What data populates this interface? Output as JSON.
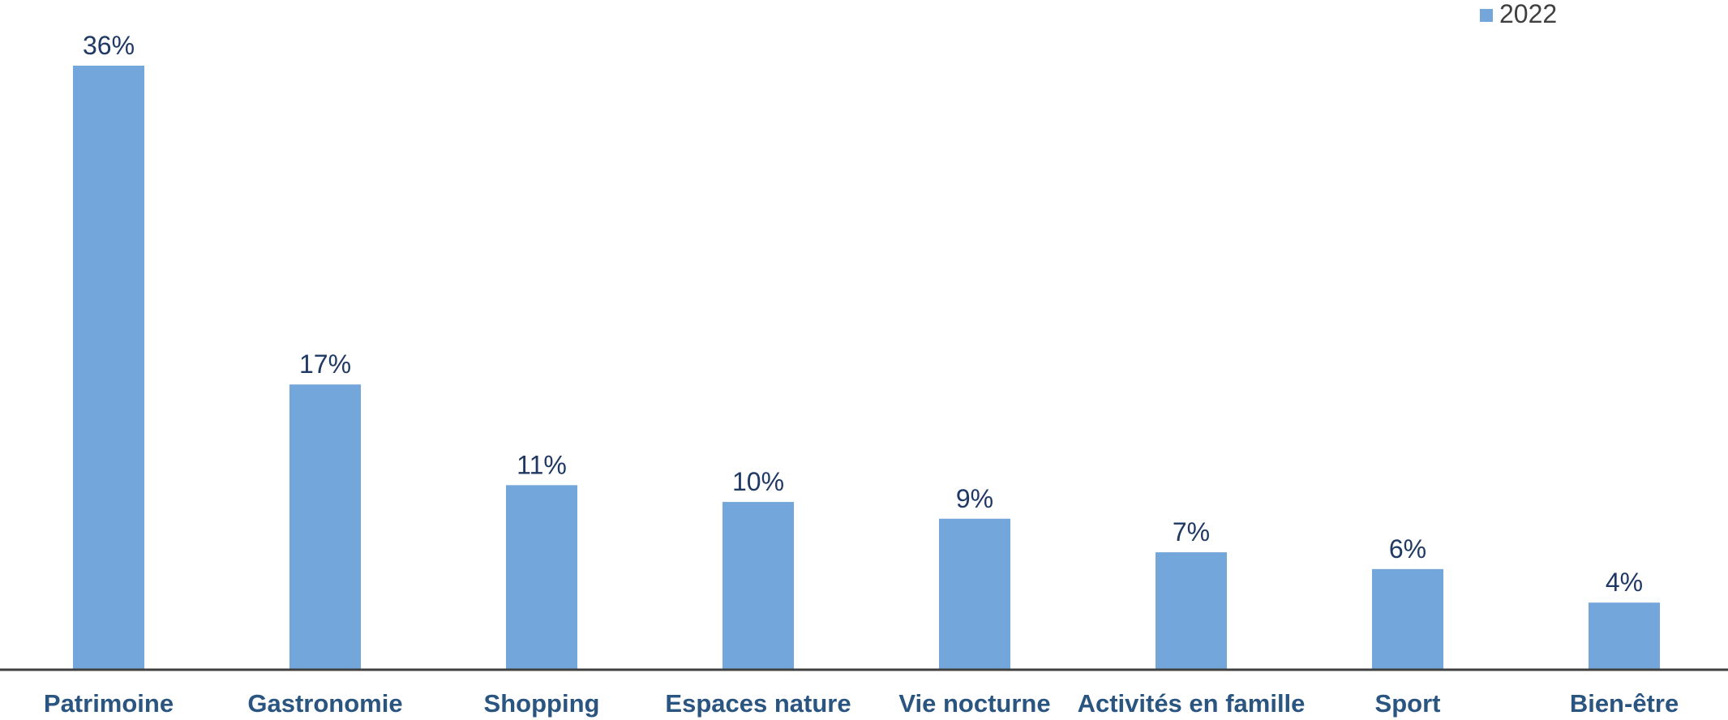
{
  "chart_data": {
    "type": "bar",
    "categories": [
      "Patrimoine",
      "Gastronomie",
      "Shopping",
      "Espaces nature",
      "Vie nocturne",
      "Activités en famille",
      "Sport",
      "Bien-être"
    ],
    "series": [
      {
        "name": "2022",
        "values": [
          36,
          17,
          11,
          10,
          9,
          7,
          6,
          4
        ],
        "color": "#73a7db"
      }
    ],
    "value_labels": [
      "36%",
      "17%",
      "11%",
      "10%",
      "9%",
      "7%",
      "6%",
      "4%"
    ],
    "ylim": [
      0,
      36
    ],
    "grid": false,
    "legend_position": "top-right"
  }
}
